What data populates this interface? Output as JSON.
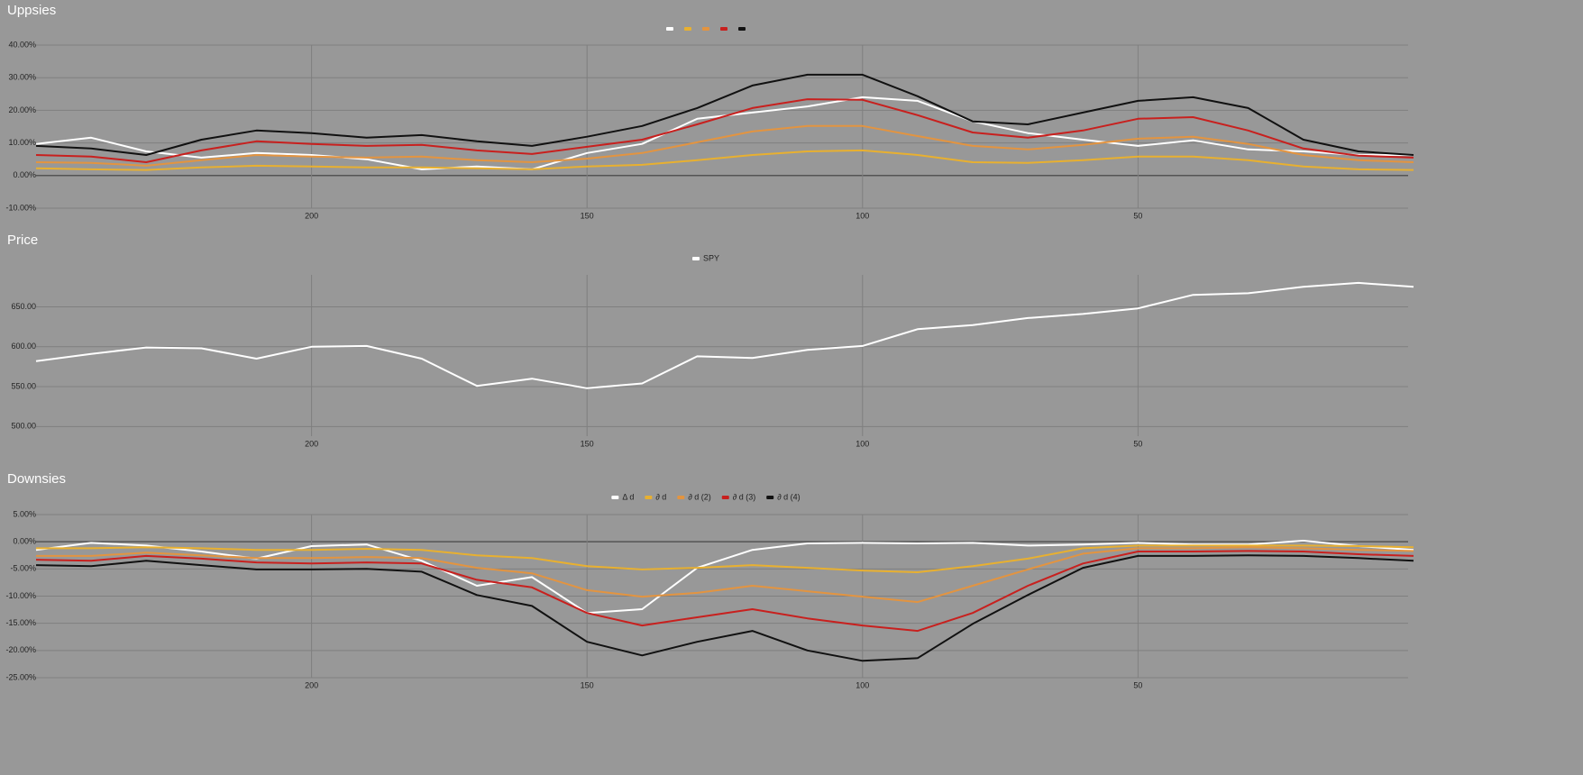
{
  "chart_data": [
    {
      "type": "line",
      "title": "Uppsies",
      "grid": true,
      "legend": "top",
      "x": [
        250,
        240,
        230,
        220,
        210,
        200,
        190,
        180,
        170,
        160,
        150,
        140,
        130,
        120,
        110,
        100,
        90,
        80,
        70,
        60,
        50,
        40,
        30,
        20,
        10,
        0
      ],
      "xlim": [
        250,
        0
      ],
      "xticks": [
        200,
        150,
        100,
        50
      ],
      "ylim": [
        -10,
        40
      ],
      "yticks": [
        {
          "value": -10,
          "label": "-10.00%"
        },
        {
          "value": 0,
          "label": "0.00%"
        },
        {
          "value": 10,
          "label": "10.00%"
        },
        {
          "value": 20,
          "label": "20.00%"
        },
        {
          "value": 30,
          "label": "30.00%"
        },
        {
          "value": 40,
          "label": "40.00%"
        }
      ],
      "series": [
        {
          "color": "#ffffff",
          "values": [
            9.7,
            11.6,
            7.4,
            5.5,
            6.9,
            6.3,
            5,
            1.9,
            2.8,
            1.9,
            6.9,
            9.7,
            17.4,
            19.3,
            21.2,
            24,
            22.9,
            16.6,
            13,
            11,
            9.1,
            10.8,
            8,
            7.4,
            6.3,
            6.3
          ]
        },
        {
          "color": "#e8b030",
          "values": [
            2.2,
            1.9,
            1.7,
            2.5,
            3,
            2.8,
            2.5,
            2.5,
            2.2,
            1.9,
            2.8,
            3.3,
            4.7,
            6.3,
            7.4,
            7.7,
            6.3,
            4.1,
            3.9,
            4.7,
            5.8,
            5.8,
            4.7,
            2.8,
            1.9,
            1.7
          ]
        },
        {
          "color": "#e39440",
          "values": [
            4.1,
            3.9,
            3,
            4.7,
            6.3,
            5.8,
            5.5,
            5.8,
            4.7,
            4.1,
            5.2,
            6.9,
            10.2,
            13.5,
            15.2,
            15.2,
            12.1,
            9.1,
            8,
            9.4,
            11.3,
            11.9,
            9.7,
            6.3,
            4.7,
            4.1
          ]
        },
        {
          "color": "#c8201e",
          "values": [
            6.3,
            5.8,
            4.1,
            7.7,
            10.5,
            9.7,
            9.1,
            9.4,
            7.7,
            6.6,
            8.8,
            11,
            15.7,
            20.7,
            23.4,
            23.2,
            18.5,
            13.2,
            11.6,
            13.8,
            17.4,
            17.9,
            13.8,
            8.3,
            6.1,
            5.5
          ]
        },
        {
          "color": "#111111",
          "values": [
            9.1,
            8.3,
            6.3,
            11,
            13.8,
            13,
            11.6,
            12.4,
            10.5,
            9.1,
            11.9,
            15.2,
            20.7,
            27.6,
            30.9,
            30.9,
            24.3,
            16.6,
            15.7,
            19.3,
            22.9,
            24,
            20.7,
            11,
            7.4,
            6.3
          ]
        }
      ]
    },
    {
      "type": "line",
      "title": "Price",
      "grid": true,
      "legend": "top",
      "x": [
        250,
        240,
        230,
        220,
        210,
        200,
        190,
        180,
        170,
        160,
        150,
        140,
        130,
        120,
        110,
        100,
        90,
        80,
        70,
        60,
        50,
        40,
        30,
        20,
        10,
        0
      ],
      "xlim": [
        250,
        0
      ],
      "xticks": [
        200,
        150,
        100,
        50
      ],
      "ylim": [
        488,
        690
      ],
      "yticks": [
        {
          "value": 500,
          "label": "500.00"
        },
        {
          "value": 550,
          "label": "550.00"
        },
        {
          "value": 600,
          "label": "600.00"
        },
        {
          "value": 650,
          "label": "650.00"
        }
      ],
      "series": [
        {
          "name": "SPY",
          "color": "#ffffff",
          "values": [
            582,
            591,
            599,
            598,
            585,
            600,
            601,
            585,
            551,
            560,
            548,
            554,
            588,
            586,
            596,
            601,
            622,
            627,
            636,
            641,
            648,
            665,
            667,
            675,
            680,
            675
          ]
        }
      ]
    },
    {
      "type": "line",
      "title": "Downsies",
      "grid": true,
      "legend": "top",
      "x": [
        250,
        240,
        230,
        220,
        210,
        200,
        190,
        180,
        170,
        160,
        150,
        140,
        130,
        120,
        110,
        100,
        90,
        80,
        70,
        60,
        50,
        40,
        30,
        20,
        10,
        0
      ],
      "xlim": [
        250,
        0
      ],
      "xticks": [
        200,
        150,
        100,
        50
      ],
      "ylim": [
        -25,
        5
      ],
      "yticks": [
        {
          "value": -25,
          "label": "-25.00%"
        },
        {
          "value": -20,
          "label": "-20.00%"
        },
        {
          "value": -15,
          "label": "-15.00%"
        },
        {
          "value": -10,
          "label": "-10.00%"
        },
        {
          "value": -5,
          "label": "-5.00%"
        },
        {
          "value": 0,
          "label": "0.00%"
        },
        {
          "value": 5,
          "label": "5.00%"
        }
      ],
      "series": [
        {
          "name": "Δ d",
          "color": "#ffffff",
          "values": [
            -1.5,
            -0.2,
            -0.7,
            -1.8,
            -3.1,
            -0.8,
            -0.5,
            -3.5,
            -8.1,
            -6.5,
            -13.1,
            -12.4,
            -4.8,
            -1.5,
            -0.3,
            -0.2,
            -0.3,
            -0.2,
            -0.7,
            -0.5,
            -0.2,
            -0.5,
            -0.5,
            0.2,
            -0.8,
            -1.5
          ]
        },
        {
          "name": "∂ d",
          "color": "#e8b030",
          "values": [
            -1.2,
            -1.2,
            -1,
            -1.2,
            -1.5,
            -1.5,
            -1.3,
            -1.5,
            -2.5,
            -3,
            -4.5,
            -5.1,
            -4.8,
            -4.3,
            -4.8,
            -5.3,
            -5.6,
            -4.5,
            -3.1,
            -1.2,
            -0.7,
            -0.7,
            -0.7,
            -0.7,
            -0.8,
            -1
          ]
        },
        {
          "name": "∂ d (2)",
          "color": "#e39440",
          "values": [
            -2.6,
            -2.6,
            -2,
            -2.5,
            -3,
            -3,
            -2.8,
            -3,
            -4.8,
            -5.8,
            -8.9,
            -10.1,
            -9.4,
            -8.1,
            -9.1,
            -10.1,
            -11.1,
            -8.1,
            -5.1,
            -2.2,
            -1.2,
            -1.2,
            -1,
            -1.2,
            -1.5,
            -1.7
          ]
        },
        {
          "name": "∂ d (3)",
          "color": "#c8201e",
          "values": [
            -3.3,
            -3.5,
            -2.6,
            -3.1,
            -3.8,
            -4,
            -3.8,
            -4,
            -7,
            -8.4,
            -13.1,
            -15.4,
            -13.9,
            -12.4,
            -14.1,
            -15.4,
            -16.4,
            -13.1,
            -8.1,
            -4,
            -1.8,
            -1.8,
            -1.7,
            -1.8,
            -2.3,
            -2.6
          ]
        },
        {
          "name": "∂ d (4)",
          "color": "#111111",
          "values": [
            -4.3,
            -4.5,
            -3.5,
            -4.3,
            -5.1,
            -5.1,
            -5,
            -5.5,
            -9.8,
            -11.8,
            -18.4,
            -20.9,
            -18.4,
            -16.4,
            -20,
            -21.9,
            -21.4,
            -15.1,
            -9.8,
            -4.8,
            -2.6,
            -2.6,
            -2.5,
            -2.6,
            -3,
            -3.5
          ]
        }
      ]
    }
  ]
}
